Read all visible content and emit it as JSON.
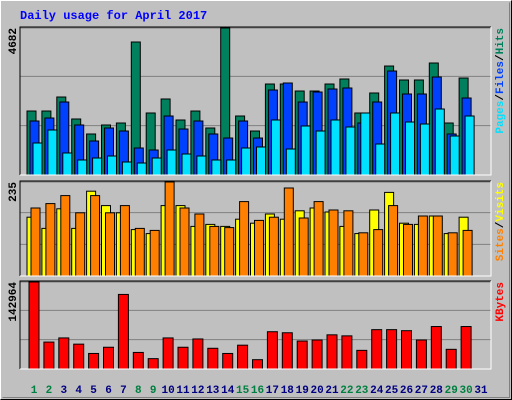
{
  "chart_data": [
    {
      "type": "bar",
      "title": "Daily usage for April 2017",
      "ylim": [
        0,
        4682
      ],
      "yticks": [
        4682
      ],
      "legend_separator": "/",
      "series": [
        {
          "name": "Hits",
          "color": "#00805c",
          "values": [
            2038,
            2038,
            2484,
            1784,
            1306,
            1593,
            1656,
            4236,
            1975,
            2421,
            1752,
            2038,
            1497,
            4682,
            1879,
            1401,
            2898,
            2898,
            2675,
            2675,
            2898,
            3058,
            1975,
            2612,
            3471,
            3026,
            3026,
            3567,
            1656,
            3089,
            null
          ]
        },
        {
          "name": "Files",
          "color": "#0040ff",
          "values": [
            1720,
            1815,
            2325,
            1593,
            1083,
            1497,
            1401,
            860,
            796,
            1879,
            1465,
            1720,
            1306,
            1178,
            1720,
            1178,
            2707,
            2930,
            2325,
            2643,
            2739,
            2771,
            1656,
            2325,
            3312,
            2580,
            2580,
            3121,
            1306,
            2452,
            null
          ]
        },
        {
          "name": "Pages",
          "color": "#00e0ff",
          "values": [
            1019,
            1433,
            701,
            478,
            541,
            605,
            414,
            382,
            541,
            796,
            669,
            605,
            478,
            478,
            860,
            892,
            1752,
            828,
            1561,
            1401,
            1752,
            1529,
            1975,
            987,
            1975,
            1688,
            1624,
            2102,
            1242,
            1879,
            null
          ]
        }
      ]
    },
    {
      "type": "bar",
      "ylim": [
        0,
        235
      ],
      "yticks": [
        235
      ],
      "legend_separator": "/",
      "series": [
        {
          "name": "Visits",
          "color": "#ffff00",
          "values": [
            147,
            119,
            168,
            119,
            212,
            176,
            158,
            116,
            106,
            176,
            176,
            124,
            129,
            124,
            142,
            132,
            155,
            142,
            163,
            170,
            160,
            124,
            106,
            165,
            209,
            132,
            129,
            150,
            106,
            147,
            null
          ]
        },
        {
          "name": "Sites",
          "color": "#ff8000",
          "values": [
            170,
            181,
            201,
            158,
            201,
            158,
            176,
            119,
            114,
            235,
            170,
            155,
            124,
            121,
            186,
            139,
            147,
            220,
            145,
            186,
            165,
            163,
            108,
            116,
            176,
            129,
            150,
            150,
            108,
            114,
            null
          ]
        }
      ]
    },
    {
      "type": "bar",
      "ylim": [
        0,
        142964
      ],
      "yticks": [
        142964
      ],
      "categories": [
        "1",
        "2",
        "3",
        "4",
        "5",
        "6",
        "7",
        "8",
        "9",
        "10",
        "11",
        "12",
        "13",
        "14",
        "15",
        "16",
        "17",
        "18",
        "19",
        "20",
        "21",
        "22",
        "23",
        "24",
        "25",
        "26",
        "27",
        "28",
        "29",
        "30",
        "31"
      ],
      "category_colors": [
        "#008040",
        "#008040",
        "#000080",
        "#000080",
        "#000080",
        "#000080",
        "#000080",
        "#008040",
        "#008040",
        "#000080",
        "#000080",
        "#000080",
        "#000080",
        "#000080",
        "#008040",
        "#008040",
        "#000080",
        "#000080",
        "#000080",
        "#000080",
        "#000080",
        "#008040",
        "#008040",
        "#000080",
        "#000080",
        "#000080",
        "#000080",
        "#000080",
        "#008040",
        "#008040",
        "#000080"
      ],
      "series": [
        {
          "name": "KBytes",
          "color": "#ff0000",
          "values": [
            142964,
            44251,
            51059,
            40847,
            25529,
            35741,
            122541,
            27231,
            17020,
            51059,
            35741,
            49357,
            34039,
            25529,
            39145,
            15318,
            61270,
            59568,
            45953,
            47655,
            56165,
            54462,
            30635,
            64674,
            64674,
            62972,
            47655,
            69780,
            32337,
            69780,
            null
          ]
        }
      ]
    }
  ]
}
